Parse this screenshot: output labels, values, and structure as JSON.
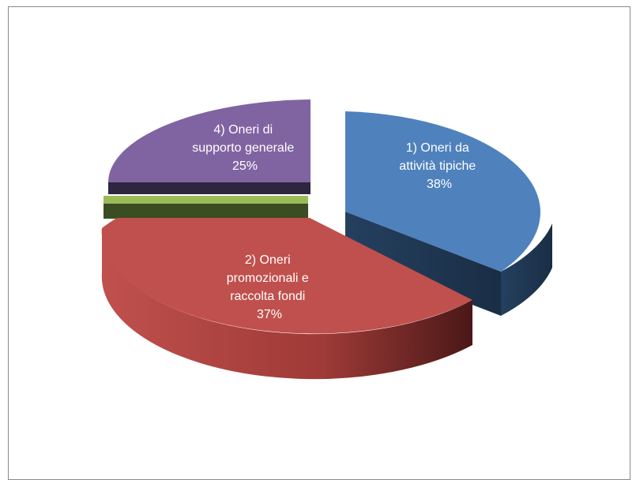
{
  "chart_data": {
    "type": "pie",
    "style": "3d-exploded",
    "slices": [
      {
        "name": "1) Oneri da attività tipiche",
        "percent": 38,
        "label_lines": [
          "1) Oneri da",
          "attività tipiche",
          "38%"
        ],
        "color": "#4f81bd",
        "side_color": "#1f3552"
      },
      {
        "name": "2) Oneri promozionali e raccolta fondi",
        "percent": 37,
        "label_lines": [
          "2) Oneri",
          "promozionali e",
          "raccolta fondi",
          "37%"
        ],
        "color": "#c0504d",
        "side_color": "#7a2523"
      },
      {
        "name": "",
        "percent": 0.8,
        "label_lines": [],
        "color": "#9bbb59",
        "side_color": "#3b4d22"
      },
      {
        "name": "4) Oneri di supporto generale",
        "percent": 25,
        "label_lines": [
          "4) Oneri di",
          "supporto generale",
          "25%"
        ],
        "color": "#8064a2",
        "side_color": "#2e2540"
      }
    ],
    "legend": "none"
  }
}
